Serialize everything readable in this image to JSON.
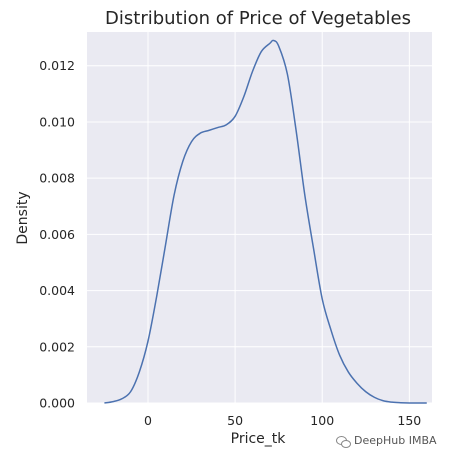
{
  "chart_data": {
    "type": "line",
    "title": "Distribution of Price of Vegetables",
    "xlabel": "Price_tk",
    "ylabel": "Density",
    "xlim": [
      -35,
      163
    ],
    "ylim": [
      0,
      0.0132
    ],
    "xticks": [
      0,
      50,
      100,
      150
    ],
    "yticks": [
      0.0,
      0.002,
      0.004,
      0.006,
      0.008,
      0.01,
      0.012
    ],
    "ytick_labels": [
      "0.000",
      "0.002",
      "0.004",
      "0.006",
      "0.008",
      "0.010",
      "0.012"
    ],
    "grid": true,
    "background_color": "#eaeaf2",
    "grid_color": "#ffffff",
    "line_color": "#4c72b0",
    "series": [
      {
        "x": [
          -25,
          -20,
          -15,
          -10,
          -5,
          0,
          5,
          10,
          15,
          20,
          25,
          30,
          35,
          40,
          45,
          50,
          55,
          60,
          65,
          70,
          72,
          75,
          80,
          85,
          90,
          95,
          100,
          105,
          110,
          115,
          120,
          125,
          130,
          135,
          140,
          145,
          150,
          155,
          160
        ],
        "y": [
          0.0,
          5e-05,
          0.00015,
          0.0004,
          0.0011,
          0.0022,
          0.0038,
          0.0056,
          0.0074,
          0.0086,
          0.0093,
          0.0096,
          0.0097,
          0.0098,
          0.0099,
          0.0102,
          0.0109,
          0.0118,
          0.0125,
          0.0128,
          0.0129,
          0.0127,
          0.0117,
          0.0097,
          0.0074,
          0.0055,
          0.0037,
          0.0026,
          0.0017,
          0.0011,
          0.0007,
          0.0004,
          0.0002,
          8e-05,
          3e-05,
          1e-05,
          0.0,
          0.0,
          0.0
        ]
      }
    ]
  },
  "watermark": "DeepHub IMBA"
}
